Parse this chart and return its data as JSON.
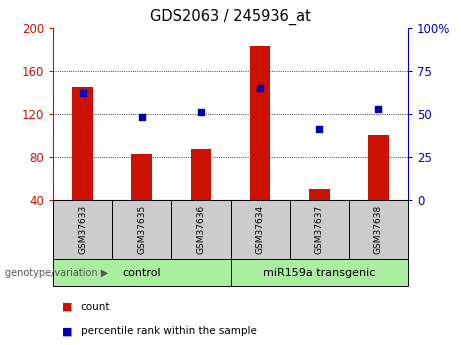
{
  "title": "GDS2063 / 245936_at",
  "samples": [
    "GSM37633",
    "GSM37635",
    "GSM37636",
    "GSM37634",
    "GSM37637",
    "GSM37638"
  ],
  "count_values": [
    145,
    83,
    87,
    183,
    50,
    100
  ],
  "percentile_values": [
    62,
    48,
    51,
    65,
    41,
    53
  ],
  "ylim_left": [
    40,
    200
  ],
  "ylim_right": [
    0,
    100
  ],
  "yticks_left": [
    40,
    80,
    120,
    160,
    200
  ],
  "yticks_right": [
    0,
    25,
    50,
    75,
    100
  ],
  "bar_color": "#cc1100",
  "dot_color": "#0000bb",
  "group1_label": "control",
  "group2_label": "miR159a transgenic",
  "group1_indices": [
    0,
    1,
    2
  ],
  "group2_indices": [
    3,
    4,
    5
  ],
  "group_bg_color": "#aaeea0",
  "sample_bg_color": "#cccccc",
  "legend_count_label": "count",
  "legend_pct_label": "percentile rank within the sample",
  "genotype_label": "genotype/variation",
  "bar_width": 0.35
}
